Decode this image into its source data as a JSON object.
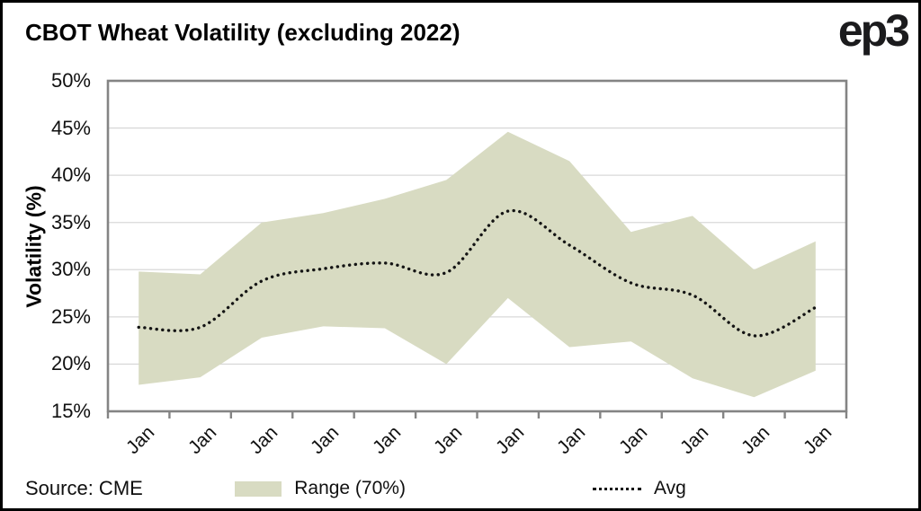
{
  "header": {
    "title": "CBOT Wheat Volatility (excluding 2022)",
    "logo": "ep3"
  },
  "y_axis": {
    "title": "Volatility (%)",
    "ticks": [
      "50%",
      "45%",
      "40%",
      "35%",
      "30%",
      "25%",
      "20%",
      "15%"
    ]
  },
  "x_axis": {
    "labels": [
      "Jan",
      "Jan",
      "Jan",
      "Jan",
      "Jan",
      "Jan",
      "Jan",
      "Jan",
      "Jan",
      "Jan",
      "Jan",
      "Jan"
    ]
  },
  "legend": {
    "range_label": "Range (70%)",
    "avg_label": "Avg"
  },
  "source": "Source: CME",
  "colors": {
    "band": "#d8dbc2",
    "avg_line": "#141414",
    "axis": "#848484",
    "gridline": "#d9d9d9"
  },
  "chart_data": {
    "type": "area",
    "title": "CBOT Wheat Volatility (excluding 2022)",
    "categories": [
      "Jan",
      "Jan",
      "Jan",
      "Jan",
      "Jan",
      "Jan",
      "Jan",
      "Jan",
      "Jan",
      "Jan",
      "Jan",
      "Jan"
    ],
    "series": [
      {
        "name": "Range (70%) upper bound",
        "values": [
          29.8,
          29.5,
          35.0,
          36.0,
          37.5,
          39.5,
          44.6,
          41.5,
          34.0,
          35.7,
          30.0,
          33.0
        ]
      },
      {
        "name": "Range (70%) lower bound",
        "values": [
          17.8,
          18.6,
          22.8,
          24.0,
          23.8,
          20.0,
          27.0,
          21.8,
          22.4,
          18.5,
          16.5,
          19.3
        ]
      },
      {
        "name": "Avg",
        "values": [
          23.9,
          23.9,
          28.8,
          30.1,
          30.7,
          29.7,
          36.2,
          32.6,
          28.6,
          27.3,
          23.0,
          26.0
        ]
      }
    ],
    "xlabel": "",
    "ylabel": "Volatility (%)",
    "ylim": [
      15,
      50
    ],
    "y_tick_step": 5,
    "grid": "horizontal",
    "legend_position": "bottom",
    "band_color": "#d8dbc2",
    "avg_line_color": "#141414",
    "source": "Source: CME"
  }
}
